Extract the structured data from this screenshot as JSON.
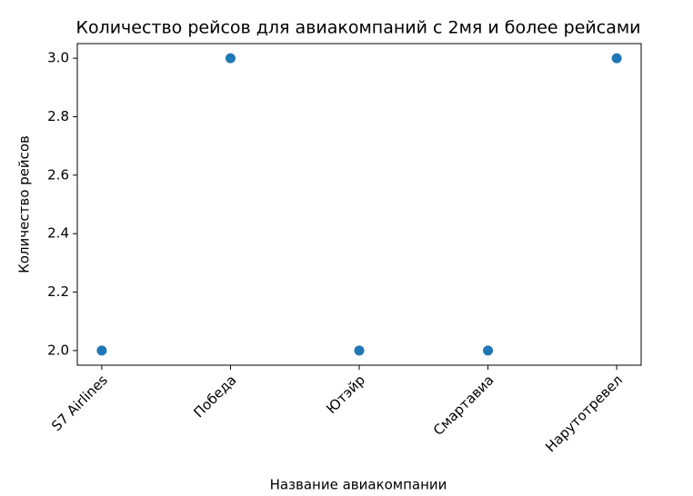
{
  "chart_data": {
    "type": "scatter",
    "title": "Количество рейсов для авиакомпаний с 2мя и более рейсами",
    "x_label": "Название авиакомпании",
    "y_label": "Количество рейсов",
    "categories": [
      "S7 Airlines",
      "Победа",
      "Ютэйр",
      "Смартавиа",
      "Нарутотревел"
    ],
    "values": [
      2,
      3,
      2,
      2,
      3
    ],
    "color": "#1f77b4",
    "ylim": [
      1.95,
      3.05
    ],
    "yticks": [
      {
        "value": 2.0,
        "label": "2.0"
      },
      2.2,
      2.4,
      2.6,
      2.8,
      {
        "value": 3.0,
        "label": "3.0"
      }
    ],
    "grid": false
  }
}
